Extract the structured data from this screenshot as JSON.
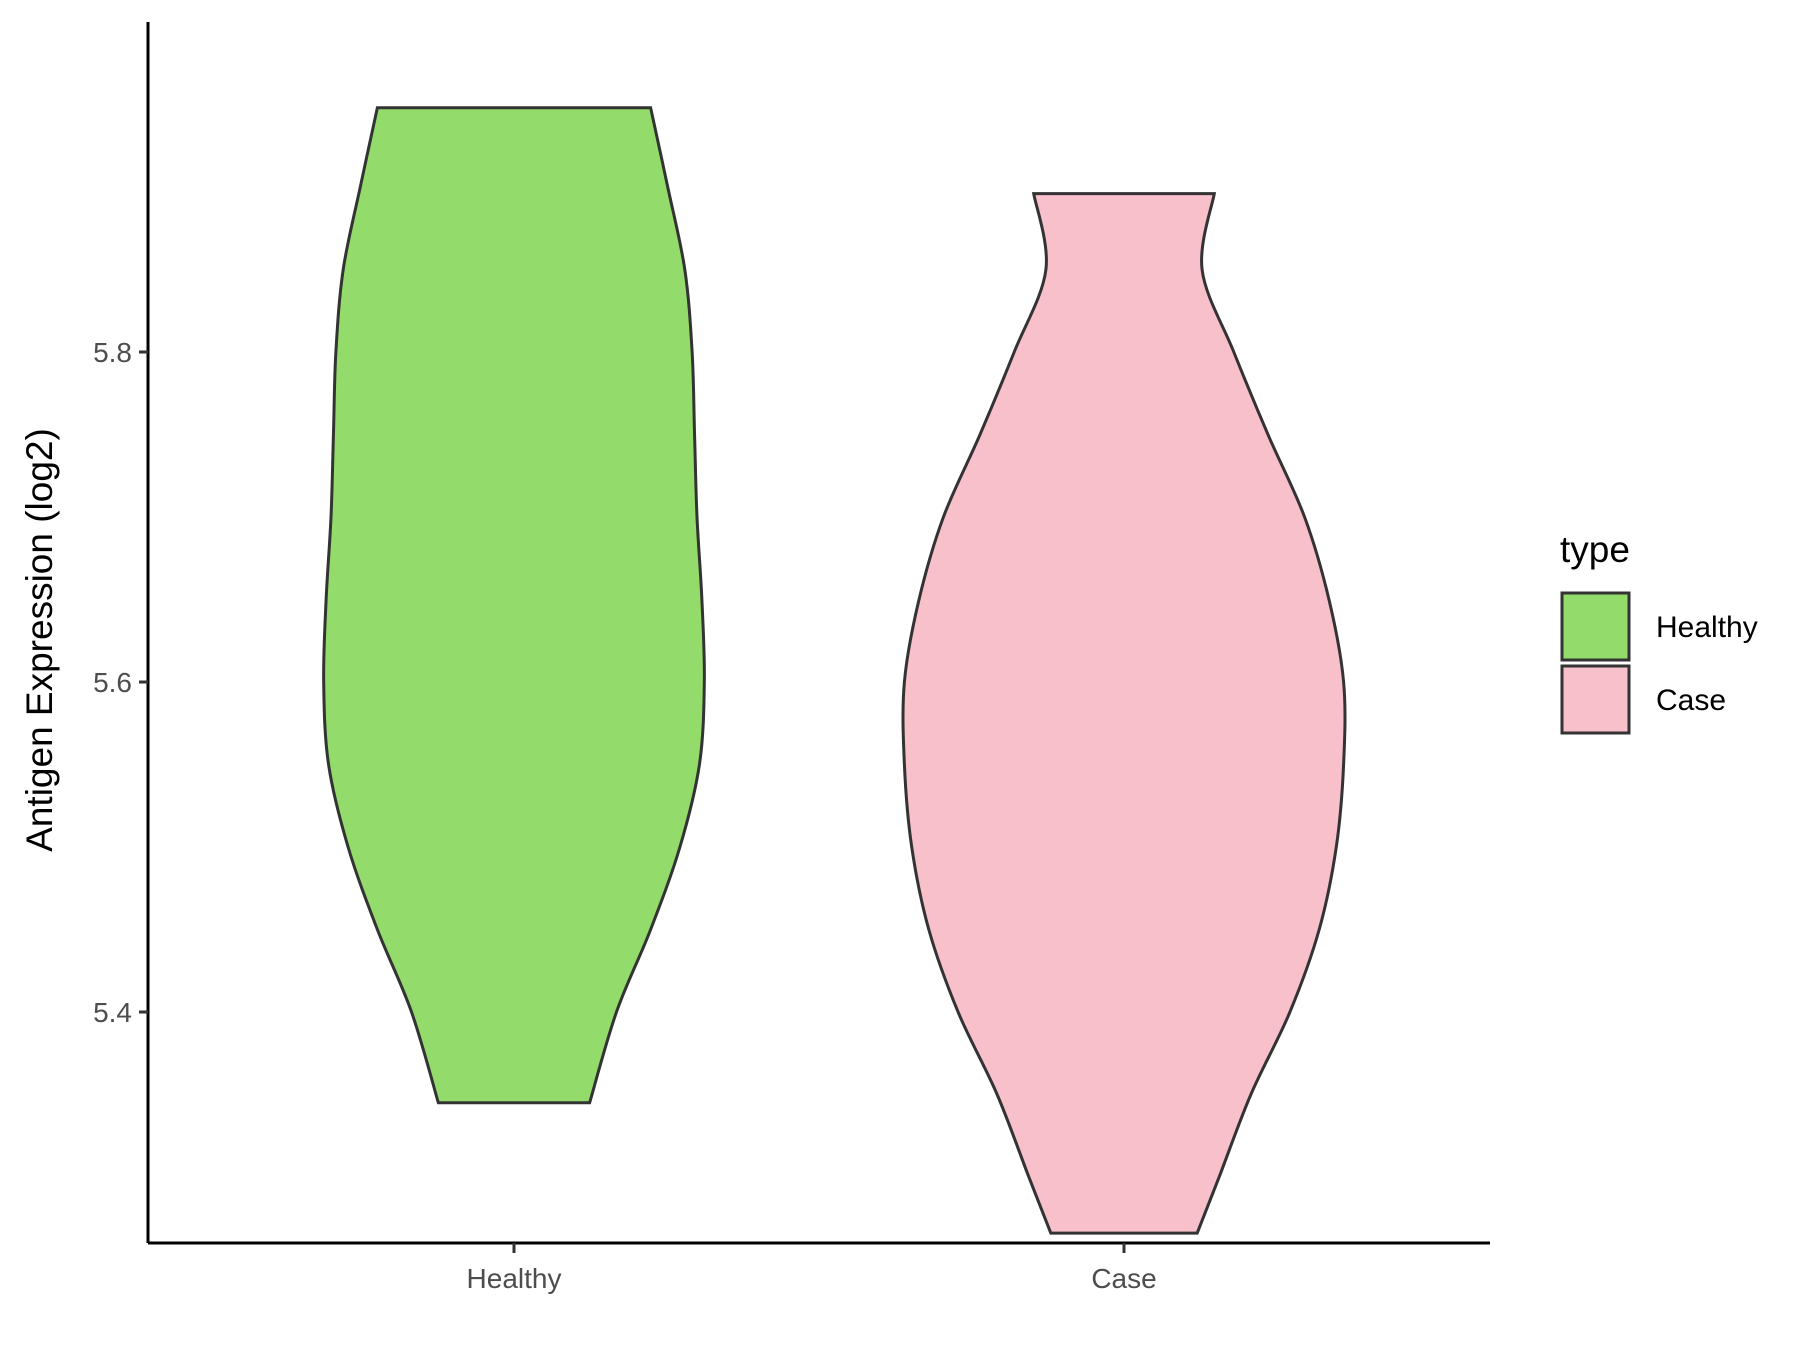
{
  "chart_data": {
    "type": "violin",
    "ylabel": "Antigen Expression (log2)",
    "ylim": [
      5.26,
      6.0
    ],
    "yticks": [
      5.4,
      5.6,
      5.8
    ],
    "ytick_labels": [
      "5.4",
      "5.6",
      "5.8"
    ],
    "categories": [
      "Healthy",
      "Case"
    ],
    "legend": {
      "title": "type",
      "placement": "right",
      "entries": [
        "Healthy",
        "Case"
      ]
    },
    "series": [
      {
        "category": "Healthy",
        "color": "#93dc6b",
        "min": 5.345,
        "max": 5.948,
        "density_profile": [
          [
            5.345,
            0.31
          ],
          [
            5.4,
            0.42
          ],
          [
            5.45,
            0.56
          ],
          [
            5.5,
            0.68
          ],
          [
            5.55,
            0.76
          ],
          [
            5.6,
            0.78
          ],
          [
            5.65,
            0.77
          ],
          [
            5.7,
            0.75
          ],
          [
            5.75,
            0.74
          ],
          [
            5.8,
            0.73
          ],
          [
            5.85,
            0.7
          ],
          [
            5.9,
            0.63
          ],
          [
            5.948,
            0.56
          ]
        ]
      },
      {
        "category": "Case",
        "color": "#f8c0cb",
        "min": 5.266,
        "max": 5.896,
        "density_profile": [
          [
            5.266,
            0.3
          ],
          [
            5.3,
            0.39
          ],
          [
            5.35,
            0.52
          ],
          [
            5.4,
            0.68
          ],
          [
            5.45,
            0.8
          ],
          [
            5.5,
            0.87
          ],
          [
            5.55,
            0.9
          ],
          [
            5.6,
            0.9
          ],
          [
            5.65,
            0.84
          ],
          [
            5.7,
            0.74
          ],
          [
            5.75,
            0.59
          ],
          [
            5.8,
            0.45
          ],
          [
            5.85,
            0.32
          ],
          [
            5.896,
            0.37
          ]
        ]
      }
    ]
  }
}
